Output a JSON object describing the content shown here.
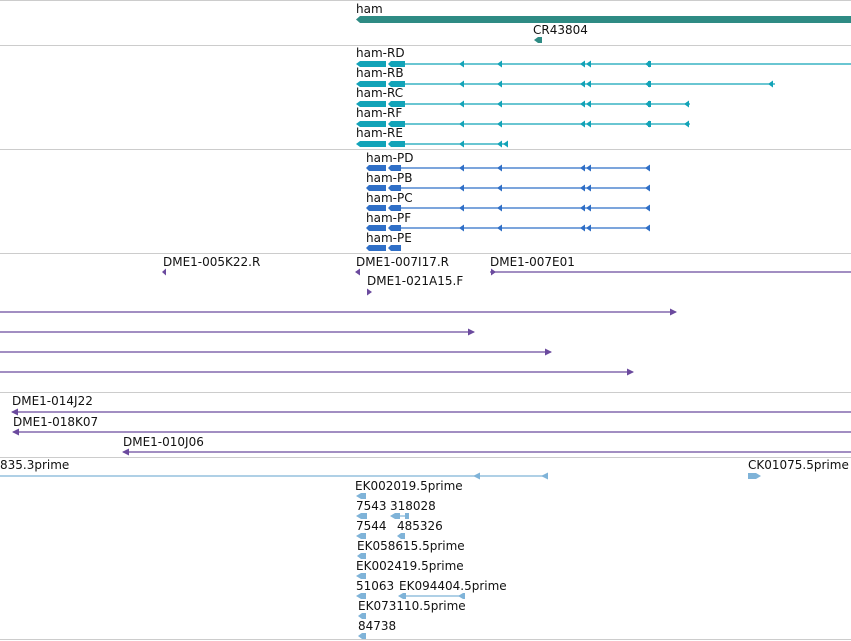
{
  "colors": {
    "gene": "#2e8b84",
    "transcript": "#12a3b8",
    "protein": "#2f6fc7",
    "clone": "#6b4a9e",
    "est": "#7fb3d8",
    "separator": "#cccccc"
  },
  "tracks": [
    {
      "id": "gene",
      "features": [
        {
          "name": "ham",
          "label": "ham"
        },
        {
          "name": "CR43804",
          "label": "CR43804"
        }
      ]
    },
    {
      "id": "transcripts",
      "features": [
        {
          "name": "ham-RD",
          "label": "ham-RD"
        },
        {
          "name": "ham-RB",
          "label": "ham-RB"
        },
        {
          "name": "ham-RC",
          "label": "ham-RC"
        },
        {
          "name": "ham-RF",
          "label": "ham-RF"
        },
        {
          "name": "ham-RE",
          "label": "ham-RE"
        }
      ]
    },
    {
      "id": "proteins",
      "features": [
        {
          "name": "ham-PD",
          "label": "ham-PD"
        },
        {
          "name": "ham-PB",
          "label": "ham-PB"
        },
        {
          "name": "ham-PC",
          "label": "ham-PC"
        },
        {
          "name": "ham-PF",
          "label": "ham-PF"
        },
        {
          "name": "ham-PE",
          "label": "ham-PE"
        }
      ]
    },
    {
      "id": "clones",
      "features": [
        {
          "name": "DME1-005K22.R",
          "label": "DME1-005K22.R"
        },
        {
          "name": "DME1-007I17.R",
          "label": "DME1-007I17.R"
        },
        {
          "name": "DME1-007E01",
          "label": "DME1-007E01"
        },
        {
          "name": "DME1-021A15.F",
          "label": "DME1-021A15.F"
        },
        {
          "name": "DME1-014J22",
          "label": "DME1-014J22"
        },
        {
          "name": "DME1-018K07",
          "label": "DME1-018K07"
        },
        {
          "name": "DME1-010J06",
          "label": "DME1-010J06"
        }
      ]
    },
    {
      "id": "ests",
      "features": [
        {
          "name": "835.3prime",
          "label": "835.3prime"
        },
        {
          "name": "CK01075.5prime",
          "label": "CK01075.5prime"
        },
        {
          "name": "EK002019.5prime",
          "label": "EK002019.5prime"
        },
        {
          "name": "7543",
          "label": "7543"
        },
        {
          "name": "318028",
          "label": "318028"
        },
        {
          "name": "7544",
          "label": "7544"
        },
        {
          "name": "485326",
          "label": "485326"
        },
        {
          "name": "EK058615.5prime",
          "label": "EK058615.5prime"
        },
        {
          "name": "EK002419.5prime",
          "label": "EK002419.5prime"
        },
        {
          "name": "51063",
          "label": "51063"
        },
        {
          "name": "EK094404.5prime",
          "label": "EK094404.5prime"
        },
        {
          "name": "EK073110.5prime",
          "label": "EK073110.5prime"
        },
        {
          "name": "84738",
          "label": "84738"
        }
      ]
    }
  ]
}
